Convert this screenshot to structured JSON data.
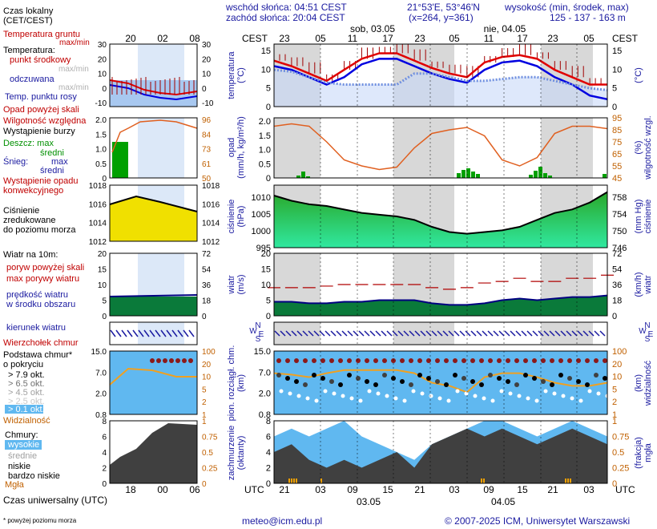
{
  "header": {
    "sunrise": "wschód słońca: 04:51 CEST",
    "sunset": "zachód słońca: 20:04 CEST",
    "coords": "21°53'E, 53°46'N",
    "grid": "(x=264,  y=361)",
    "elev_title": "wysokość (min, środek, max)",
    "elev_values": "125 - 137 - 163 m"
  },
  "legend": {
    "local_time": "Czas lokalny",
    "local_time_sub": "(CET/CEST)",
    "ground_temp": "Temperatura gruntu",
    "ground_temp_sub": "max/min",
    "temp": "Temperatura:",
    "temp_mid": "punkt środkowy",
    "temp_maxmin": "max/min",
    "felt": "odczuwana",
    "felt_maxmin": "max/min",
    "dew": "Temp. punktu rosy",
    "precip_above": "Opad powyżej skali",
    "humidity": "Wilgotność względna",
    "storm": "Wystąpienie burzy",
    "rain": "Deszcz: max",
    "rain_mean": "średni",
    "snow": "Śnieg:",
    "snow_max": "max",
    "snow_mean": "średni",
    "precip_occ": "Wystąpienie opadu",
    "precip_occ2": "konwekcyjnego",
    "pressure1": "Ciśnienie",
    "pressure2": "zredukowane",
    "pressure3": "do poziomu morza",
    "wind": "Wiatr na 10m:",
    "gust_above": "poryw powyżej skali",
    "gust_max": "max porywy wiatru",
    "wind_mean1": "prędkość wiatru",
    "wind_mean2": "w środku obszaru",
    "wind_dir": "kierunek wiatru",
    "cloud_top": "Wierzchołek chmur",
    "cloud_base1": "Podstawa chmur*",
    "cloud_base2": "o pokryciu",
    "okt79": "> 7.9 okt.",
    "okt65": "> 6.5 okt.",
    "okt45": "> 4.5 okt.",
    "okt25": "> 2.5 okt.",
    "okt01": "> 0.1 okt.",
    "visibility": "Widzialność",
    "clouds": "Chmury:",
    "high": "wysokie",
    "mid": "średnie",
    "low": "niskie",
    "very_low": "bardzo niskie",
    "fog": "Mgła",
    "utc": "Czas uniwersalny (UTC)",
    "footnote": "* powyżej poziomu morza"
  },
  "side_axes": {
    "t_left": [
      "30",
      "20",
      "10",
      "0",
      "-10"
    ],
    "t_right": [
      "30",
      "20",
      "10",
      "0",
      "-10"
    ],
    "p_left": [
      "2.0",
      "1.5",
      "1.0",
      "0.5",
      "0"
    ],
    "p_right": [
      "96",
      "84",
      "73",
      "61",
      "50"
    ],
    "ps_left": [
      "1018",
      "1016",
      "1014",
      "1012"
    ],
    "ps_right": [
      "1018",
      "1016",
      "1014",
      "1012"
    ],
    "w_left": [
      "20",
      "15",
      "10",
      "5",
      "0"
    ],
    "w_right": [
      "72",
      "54",
      "36",
      "18",
      "0"
    ],
    "c_left": [
      "15.0",
      "7.0",
      "2.0",
      "0.8"
    ],
    "c_right": [
      "100",
      "20",
      "10",
      "5",
      "2",
      "1"
    ],
    "cl_left": [
      "8",
      "6",
      "4",
      "2",
      "0"
    ],
    "cl_right": [
      "1",
      "0.75",
      "0.5",
      "0.25",
      "0"
    ],
    "local_ticks": [
      "20",
      "02",
      "08"
    ],
    "utc_ticks": [
      "18",
      "00",
      "06"
    ]
  },
  "main": {
    "tz_left": "CEST",
    "tz_right": "CEST",
    "local_ticks": [
      "23",
      "05",
      "11",
      "17",
      "23",
      "05",
      "11",
      "17",
      "23",
      "05"
    ],
    "day1": "sob, 03.05",
    "day2": "nie, 04.05",
    "utc_left": "UTC",
    "utc_right": "UTC",
    "utc_ticks": [
      "21",
      "03",
      "09",
      "15",
      "21",
      "03",
      "09",
      "15",
      "21",
      "03"
    ],
    "utc_date1": "03.05",
    "utc_date2": "04.05",
    "temp_label": "temperatura",
    "temp_unit": "(°C)",
    "temp_ticks": [
      "15",
      "10",
      "5",
      "0"
    ],
    "precip_label": "opad",
    "precip_unit": "(mm/h, kg/m²/h)",
    "hum_label": "wilgotność wzgl.",
    "hum_unit": "(%)",
    "precip_ticks": [
      "2.0",
      "1.5",
      "1.0",
      "0.5",
      "0"
    ],
    "hum_ticks": [
      "95",
      "85",
      "75",
      "65",
      "55",
      "45"
    ],
    "press_label": "ciśnienie",
    "press_unit": "(hPa)",
    "press_label_r": "ciśnienie",
    "press_unit_r": "(mm Hg)",
    "press_ticks": [
      "1010",
      "1005",
      "1000",
      "995"
    ],
    "press_ticks_r": [
      "758",
      "754",
      "750",
      "746"
    ],
    "wind_label": "wiatr",
    "wind_unit": "(m/s)",
    "wind_unit_r": "(km/h)",
    "wind_ticks": [
      "20",
      "15",
      "10",
      "5",
      "0"
    ],
    "wind_ticks_r": [
      "72",
      "54",
      "36",
      "18",
      "0"
    ],
    "compass": "N",
    "compass_w": "W",
    "compass_e": "E",
    "compass_s": "S",
    "cloud_label": "pion. rozciągł. chm.",
    "cloud_unit": "(km)",
    "vis_label": "widzialność",
    "vis_unit": "(km)",
    "cloud_ticks": [
      "15.0",
      "7.0",
      "2.0",
      "0.8"
    ],
    "vis_ticks": [
      "100",
      "20",
      "10",
      "5",
      "2",
      "1"
    ],
    "cover_label": "zachmurzenie",
    "cover_unit": "(oktanty)",
    "fog_label": "mgła",
    "fog_unit": "(frakcja)",
    "cover_ticks": [
      "8",
      "6",
      "4",
      "2",
      "0"
    ],
    "fog_ticks": [
      "1",
      "0.75",
      "0.5",
      "0.25",
      "0"
    ]
  },
  "footer": {
    "email": "meteo@icm.edu.pl",
    "copyright": "© 2007-2025 ICM, Uniwersytet Warszawski"
  },
  "colors": {
    "temp": "#e00000",
    "felt": "#0000e0",
    "humidity": "#e06020",
    "rain": "#00a000",
    "pressure_fill": "#40c040",
    "wind_fill": "#008000",
    "cloud_bg": "#60b8f0",
    "night": "#d8d8d8"
  },
  "chart_data": [
    {
      "type": "line",
      "title": "temperatura",
      "ylabel": "(°C)",
      "x": [
        "21",
        "00",
        "03",
        "06",
        "09",
        "12",
        "15",
        "18",
        "21",
        "00",
        "03",
        "06",
        "09",
        "12",
        "15",
        "18",
        "21",
        "00",
        "03",
        "06"
      ],
      "ylim": [
        0,
        17
      ],
      "series": [
        {
          "name": "punkt środkowy",
          "values": [
            12.5,
            11,
            9,
            7,
            10,
            13,
            14.5,
            14.5,
            12.5,
            10.5,
            9,
            8,
            12,
            13.5,
            14,
            13,
            10,
            8,
            6,
            6
          ]
        },
        {
          "name": "odczuwana",
          "values": [
            11,
            10,
            8,
            6,
            8,
            11.5,
            13,
            13,
            11,
            9,
            7.5,
            6.5,
            10,
            12,
            12.5,
            11,
            8,
            6,
            3,
            2
          ]
        },
        {
          "name": "Temp. punktu rosy",
          "values": [
            10,
            9.5,
            8,
            6.5,
            6,
            6,
            6,
            6,
            9,
            9,
            8,
            7,
            7,
            7.5,
            8,
            8,
            7,
            6,
            5,
            4.5
          ]
        }
      ]
    },
    {
      "type": "line",
      "title": "wilgotność wzgl.",
      "ylabel": "(%)",
      "x": [
        "21",
        "00",
        "03",
        "06",
        "09",
        "12",
        "15",
        "18",
        "21",
        "00",
        "03",
        "06",
        "09",
        "12",
        "15",
        "18",
        "21",
        "00",
        "03",
        "06"
      ],
      "ylim": [
        45,
        95
      ],
      "series": [
        {
          "name": "Wilgotność względna",
          "values": [
            88,
            90,
            88,
            75,
            60,
            55,
            52,
            54,
            70,
            82,
            85,
            87,
            80,
            60,
            55,
            62,
            82,
            88,
            88,
            86
          ]
        }
      ]
    },
    {
      "type": "area",
      "title": "ciśnienie",
      "ylabel": "(hPa)",
      "x": [
        "21",
        "00",
        "03",
        "06",
        "09",
        "12",
        "15",
        "18",
        "21",
        "00",
        "03",
        "06",
        "09",
        "12",
        "15",
        "18",
        "21",
        "00",
        "03",
        "06"
      ],
      "ylim": [
        995,
        1013
      ],
      "series": [
        {
          "name": "Ciśnienie",
          "values": [
            1010,
            1008.5,
            1007.5,
            1007,
            1006,
            1005,
            1004.5,
            1004,
            1003,
            1001,
            999.5,
            999,
            999.5,
            1000,
            1001,
            1003,
            1005,
            1006,
            1008,
            1011
          ]
        }
      ]
    },
    {
      "type": "area",
      "title": "wiatr",
      "ylabel": "(m/s)",
      "x": [
        "21",
        "00",
        "03",
        "06",
        "09",
        "12",
        "15",
        "18",
        "21",
        "00",
        "03",
        "06",
        "09",
        "12",
        "15",
        "18",
        "21",
        "00",
        "03",
        "06"
      ],
      "ylim": [
        0,
        20
      ],
      "series": [
        {
          "name": "prędkość wiatru",
          "values": [
            4.5,
            4.5,
            4,
            4,
            4.5,
            4.5,
            5,
            5,
            5,
            4,
            3.5,
            3.5,
            4,
            5,
            5.5,
            5,
            5.5,
            6,
            6,
            6.5
          ]
        },
        {
          "name": "max porywy wiatru",
          "values": [
            9,
            9,
            9,
            9.5,
            10,
            10,
            10,
            10,
            10,
            9,
            8.5,
            9,
            10.5,
            11,
            12,
            11,
            11,
            12,
            12,
            13
          ]
        }
      ]
    },
    {
      "type": "line",
      "title": "widzialność",
      "ylabel": "(km)",
      "x": [
        "21",
        "00",
        "03",
        "06",
        "09",
        "12",
        "15",
        "18",
        "21",
        "00",
        "03",
        "06",
        "09",
        "12",
        "15",
        "18",
        "21",
        "00",
        "03",
        "06"
      ],
      "ylim": [
        1,
        100
      ],
      "series": [
        {
          "name": "Widzialność",
          "values": [
            20,
            18,
            15,
            20,
            25,
            25,
            25,
            25,
            20,
            10,
            8,
            5,
            15,
            20,
            20,
            15,
            10,
            8,
            8,
            10
          ]
        }
      ]
    },
    {
      "type": "area",
      "title": "zachmurzenie",
      "ylabel": "(oktanty)",
      "x": [
        "21",
        "00",
        "03",
        "06",
        "09",
        "12",
        "15",
        "18",
        "21",
        "00",
        "03",
        "06",
        "09",
        "12",
        "15",
        "18",
        "21",
        "00",
        "03",
        "06"
      ],
      "ylim": [
        0,
        8
      ],
      "series": [
        {
          "name": "wysokie",
          "values": [
            6,
            7,
            6,
            7,
            8,
            6,
            5,
            4,
            3,
            5,
            6,
            7,
            8,
            8,
            7,
            6,
            7,
            8,
            7,
            6
          ]
        },
        {
          "name": "niskie",
          "values": [
            4,
            5,
            3,
            2,
            3,
            2,
            3,
            4,
            2,
            5,
            6,
            7,
            6,
            7,
            6,
            5,
            6,
            7,
            6,
            5
          ]
        }
      ]
    }
  ]
}
